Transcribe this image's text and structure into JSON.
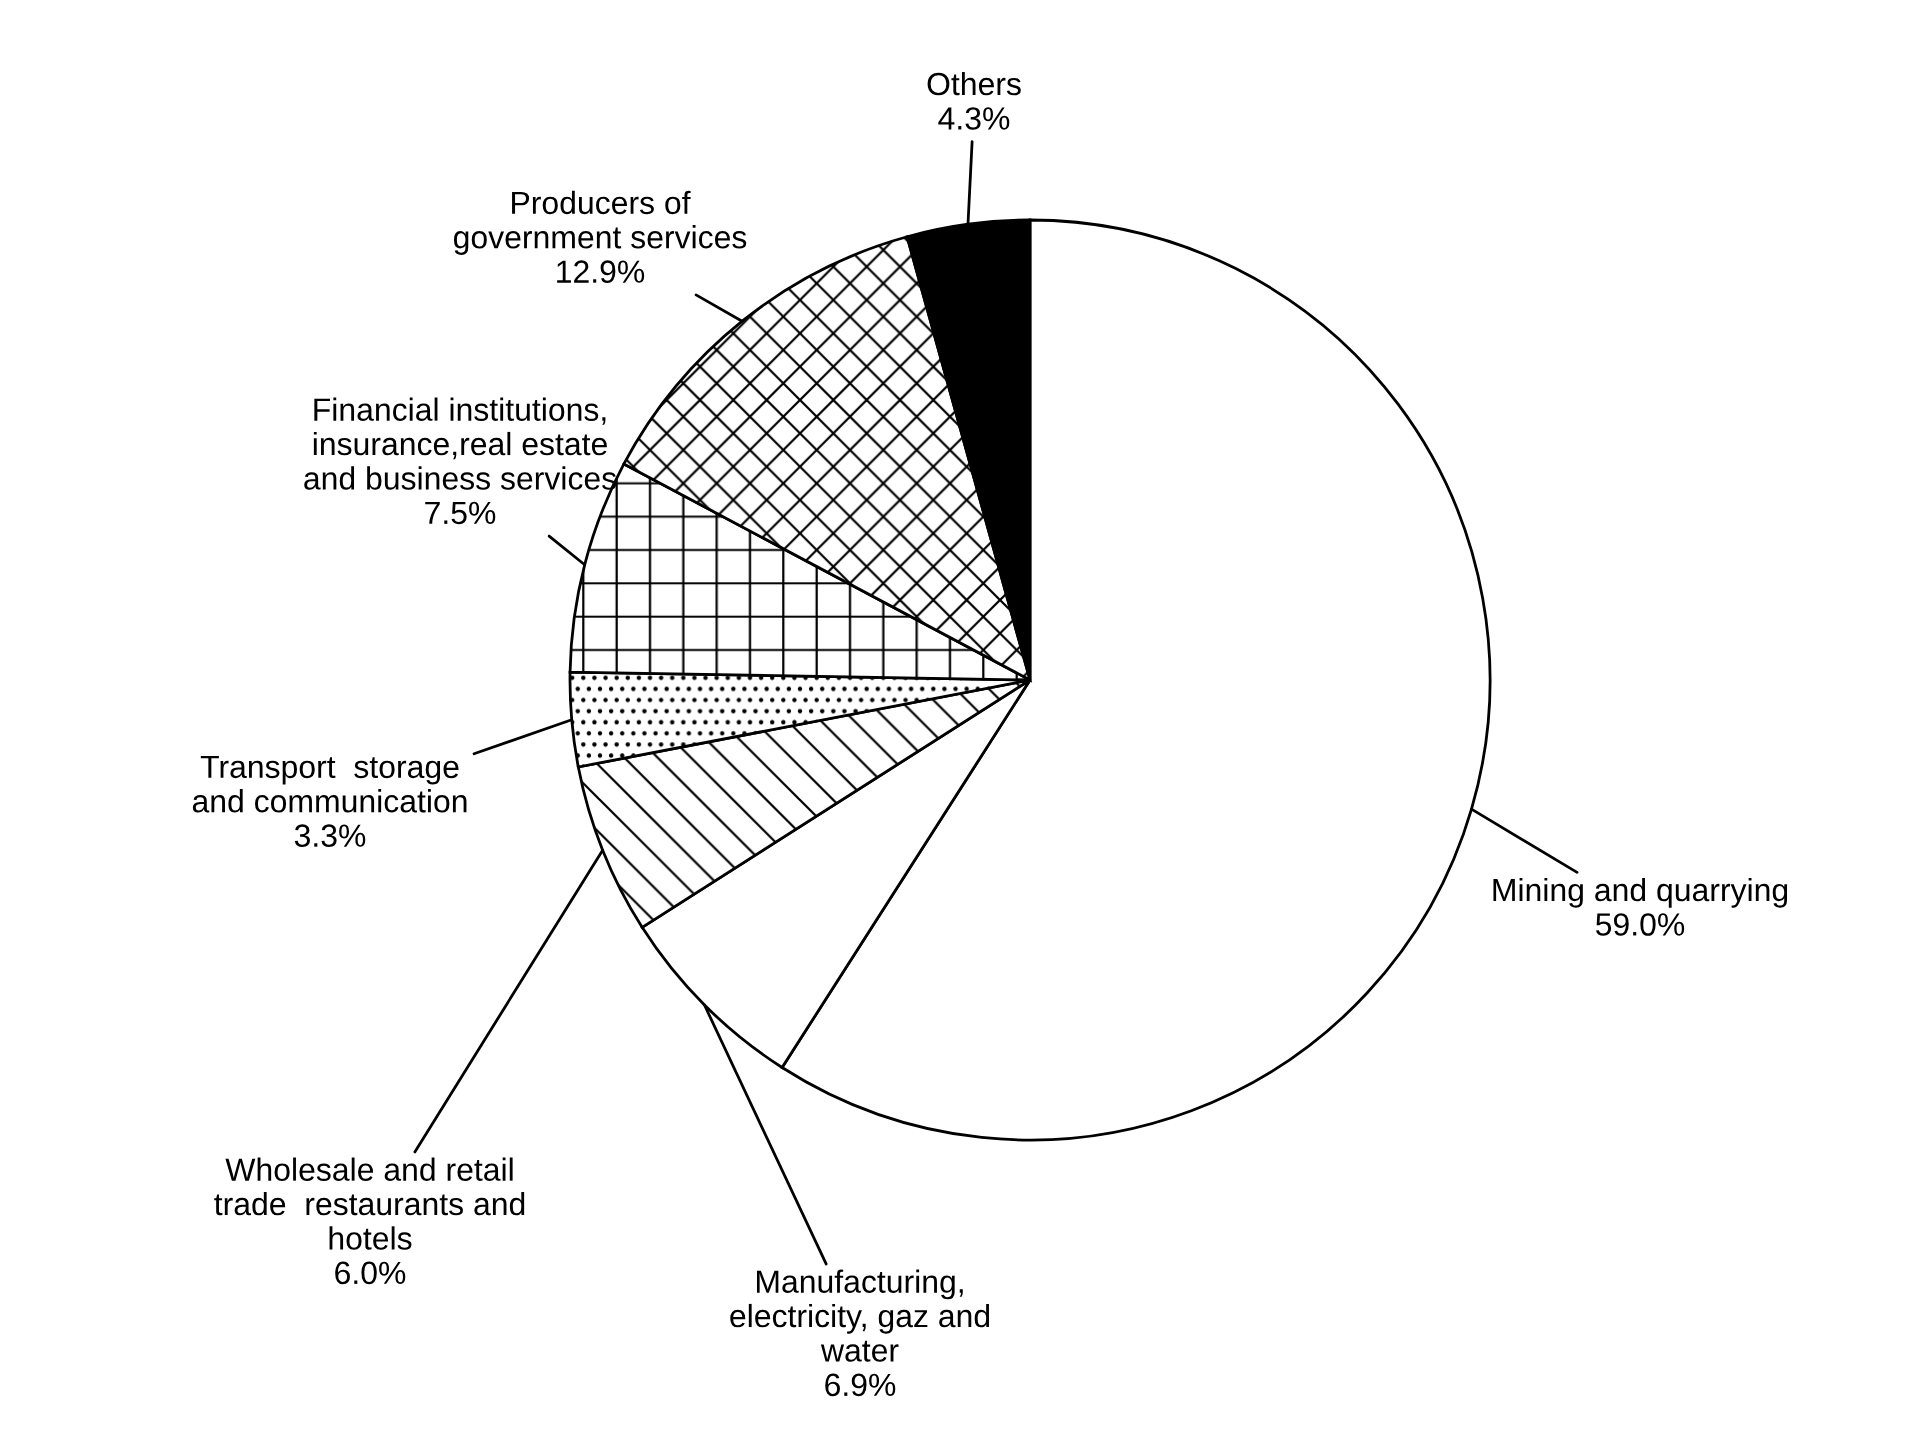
{
  "chart_data": {
    "type": "pie",
    "categories": [
      "Mining and quarrying",
      "Manufacturing,\nelectricity, gaz and\nwater",
      "Wholesale and retail\ntrade  restaurants and\nhotels",
      "Transport  storage\nand communication",
      "Financial institutions,\ninsurance,real estate\nand business services",
      "Producers of\ngovernment services",
      "Others"
    ],
    "values": [
      59.0,
      6.9,
      6.0,
      3.3,
      7.5,
      12.9,
      4.3
    ],
    "value_labels": [
      "59.0%",
      "6.9%",
      "6.0%",
      "3.3%",
      "7.5%",
      "12.9%",
      "4.3%"
    ],
    "colors": [
      "#ffffff",
      "#ffffff",
      "#ffffff",
      "#ffffff",
      "#ffffff",
      "#ffffff",
      "#000000"
    ],
    "legend": false
  }
}
